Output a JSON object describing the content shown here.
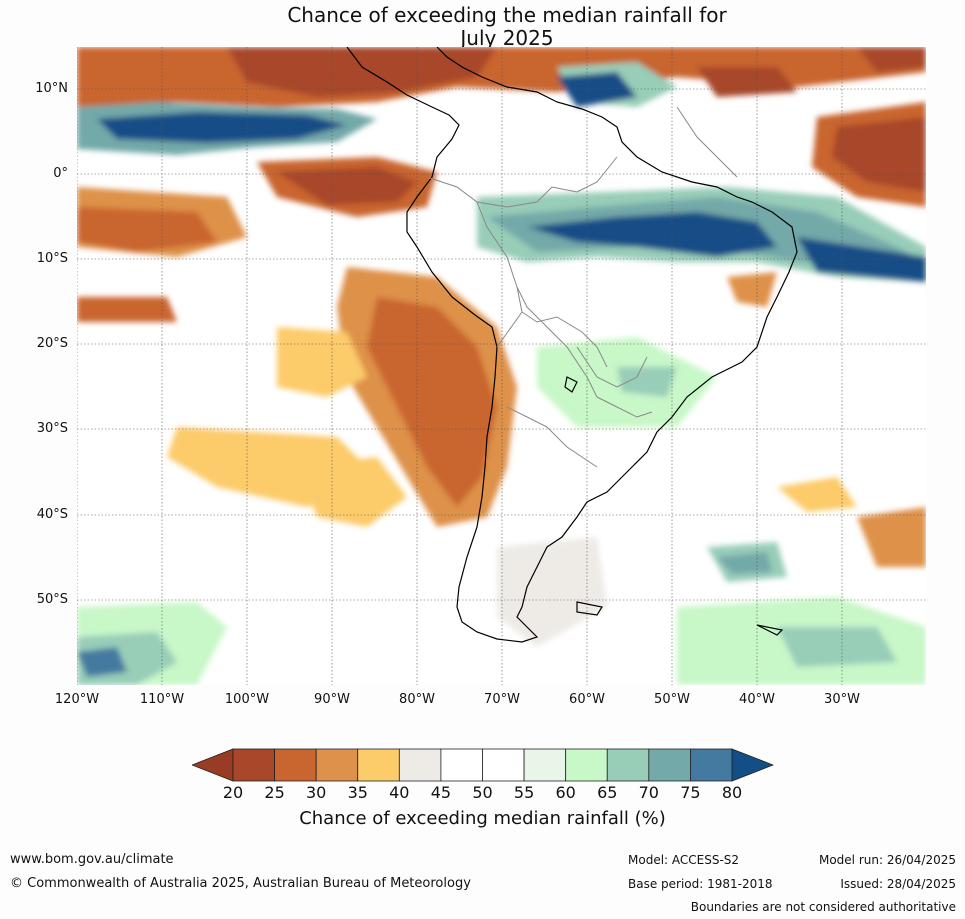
{
  "title": {
    "line1": "Chance of exceeding the median rainfall for",
    "line2": "July 2025"
  },
  "map": {
    "lat_labels": [
      "10°N",
      "0°",
      "10°S",
      "20°S",
      "30°S",
      "40°S",
      "50°S"
    ],
    "lon_labels": [
      "120°W",
      "110°W",
      "100°W",
      "90°W",
      "80°W",
      "70°W",
      "60°W",
      "50°W",
      "40°W",
      "30°W"
    ],
    "lon_range": [
      -120,
      -20
    ],
    "lat_range": [
      -60,
      15
    ]
  },
  "legend": {
    "ticks": [
      "20",
      "25",
      "30",
      "35",
      "40",
      "45",
      "50",
      "55",
      "60",
      "65",
      "70",
      "75",
      "80"
    ],
    "colors": [
      "#a8472a",
      "#c9652f",
      "#de914a",
      "#fccb6a",
      "#eeebe6",
      "#ffffff",
      "#ffffff",
      "#e8f5e8",
      "#c8f7c8",
      "#98cdb8",
      "#73a9a9",
      "#457aa0"
    ],
    "under_color": "#983c24",
    "over_color": "#134e86",
    "label": "Chance of exceeding median rainfall (%)"
  },
  "footer": {
    "url": "www.bom.gov.au/climate",
    "copyright": "© Commonwealth of Australia 2025, Australian Bureau of Meteorology",
    "model": "Model: ACCESS-S2",
    "base_period": "Base period: 1981-2018",
    "model_run": "Model run: 26/04/2025",
    "issued": "Issued: 28/04/2025",
    "disclaimer": "Boundaries are not considered authoritative"
  }
}
